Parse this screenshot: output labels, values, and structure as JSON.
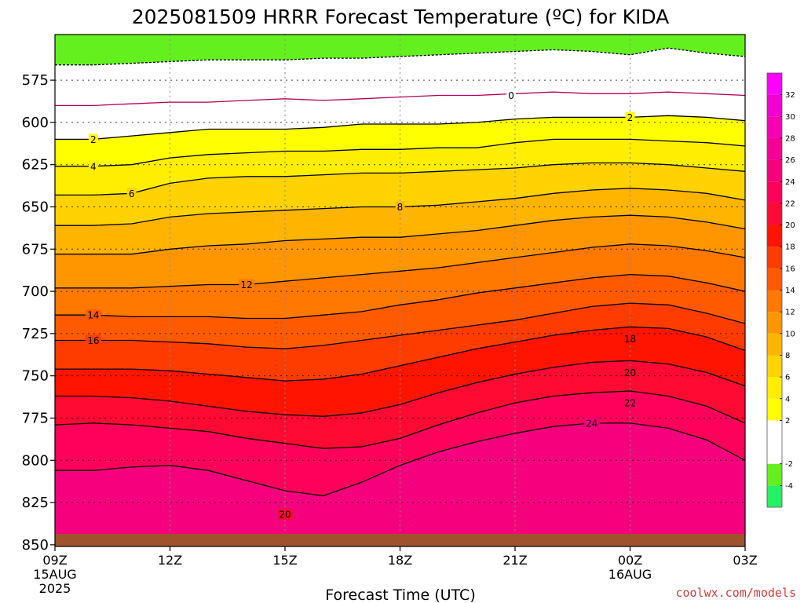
{
  "colors": {
    "ground": "#a0522d",
    "contour": "#000000",
    "zero_contour": "#b4005a",
    "credit": "#d23c3c"
  },
  "chart_data": {
    "type": "heatmap",
    "title": "2025081509 HRRR Forecast Temperature (ºC) for KIDA",
    "xlabel": "Forecast Time (UTC)",
    "ylabel": "",
    "x_ticks": [
      {
        "label": "09Z",
        "sub": [
          "15AUG",
          "2025"
        ]
      },
      {
        "label": "12Z",
        "sub": []
      },
      {
        "label": "15Z",
        "sub": []
      },
      {
        "label": "18Z",
        "sub": []
      },
      {
        "label": "21Z",
        "sub": []
      },
      {
        "label": "00Z",
        "sub": [
          "16AUG"
        ]
      },
      {
        "label": "03Z",
        "sub": []
      }
    ],
    "xlim_hours": [
      0,
      18
    ],
    "y_ticks": [
      "575",
      "600",
      "625",
      "650",
      "675",
      "700",
      "725",
      "750",
      "775",
      "800",
      "825",
      "850"
    ],
    "ylim_hpa": [
      548,
      851
    ],
    "y_scale": "linear (hPa, inverted)",
    "grid": true,
    "colorbar": {
      "placement": "right",
      "bins": [
        {
          "from": -6,
          "to": -4,
          "color": "#28f064"
        },
        {
          "from": -4,
          "to": -2,
          "color": "#64f01e"
        },
        {
          "from": -2,
          "to": 0,
          "color": "#ffffff"
        },
        {
          "from": 0,
          "to": 2,
          "color": "#ffffff"
        },
        {
          "from": 2,
          "to": 4,
          "color": "#ffff00"
        },
        {
          "from": 4,
          "to": 6,
          "color": "#ffee00"
        },
        {
          "from": 6,
          "to": 8,
          "color": "#ffd200"
        },
        {
          "from": 8,
          "to": 10,
          "color": "#ffb400"
        },
        {
          "from": 10,
          "to": 12,
          "color": "#ff9600"
        },
        {
          "from": 12,
          "to": 14,
          "color": "#ff7800"
        },
        {
          "from": 14,
          "to": 16,
          "color": "#ff5a00"
        },
        {
          "from": 16,
          "to": 18,
          "color": "#ff3c00"
        },
        {
          "from": 18,
          "to": 20,
          "color": "#ff1400"
        },
        {
          "from": 20,
          "to": 22,
          "color": "#ff0a32"
        },
        {
          "from": 22,
          "to": 24,
          "color": "#ff005a"
        },
        {
          "from": 24,
          "to": 26,
          "color": "#f5007d"
        },
        {
          "from": 26,
          "to": 28,
          "color": "#f50096"
        },
        {
          "from": 28,
          "to": 30,
          "color": "#f500b4"
        },
        {
          "from": 30,
          "to": 32,
          "color": "#f000d2"
        },
        {
          "from": 32,
          "to": 34,
          "color": "#ff00ff"
        }
      ],
      "tick_labels": [
        "-4",
        "-2",
        "2",
        "4",
        "6",
        "8",
        "10",
        "12",
        "14",
        "16",
        "18",
        "20",
        "22",
        "24",
        "26",
        "28",
        "30",
        "32"
      ]
    },
    "isotherm_hours": [
      0,
      1,
      2,
      3,
      4,
      5,
      6,
      7,
      8,
      9,
      10,
      11,
      12,
      13,
      14,
      15,
      16,
      17,
      18
    ],
    "isotherms_hpa": [
      {
        "temp": -2,
        "p": [
          566,
          566,
          565,
          564,
          563,
          563,
          563,
          562,
          562,
          561,
          560,
          559,
          558,
          557,
          558,
          560,
          556,
          559,
          561
        ]
      },
      {
        "temp": 0,
        "p": [
          590,
          590,
          589,
          588,
          588,
          587,
          586,
          587,
          586,
          585,
          584,
          584,
          583,
          582,
          583,
          583,
          582,
          583,
          584
        ]
      },
      {
        "temp": 2,
        "p": [
          610,
          610,
          608,
          606,
          604,
          604,
          604,
          603,
          601,
          601,
          601,
          600,
          598,
          597,
          597,
          597,
          596,
          597,
          599
        ]
      },
      {
        "temp": 4,
        "p": [
          626,
          626,
          625,
          621,
          619,
          618,
          617,
          617,
          616,
          616,
          615,
          615,
          612,
          610,
          610,
          610,
          611,
          612,
          614
        ]
      },
      {
        "temp": 6,
        "p": [
          643,
          643,
          642,
          636,
          633,
          632,
          632,
          631,
          630,
          630,
          629,
          628,
          627,
          625,
          624,
          624,
          625,
          627,
          629
        ]
      },
      {
        "temp": 8,
        "p": [
          661,
          661,
          660,
          656,
          654,
          653,
          652,
          651,
          650,
          650,
          649,
          647,
          645,
          642,
          640,
          639,
          640,
          642,
          646
        ]
      },
      {
        "temp": 10,
        "p": [
          678,
          678,
          678,
          675,
          673,
          672,
          670,
          669,
          668,
          668,
          666,
          664,
          661,
          658,
          656,
          655,
          656,
          659,
          663
        ]
      },
      {
        "temp": 12,
        "p": [
          698,
          698,
          698,
          697,
          696,
          696,
          694,
          692,
          690,
          688,
          686,
          683,
          680,
          677,
          674,
          672,
          673,
          676,
          680
        ]
      },
      {
        "temp": 14,
        "p": [
          714,
          714,
          715,
          715,
          715,
          716,
          716,
          714,
          712,
          708,
          705,
          701,
          698,
          695,
          692,
          690,
          691,
          695,
          700
        ]
      },
      {
        "temp": 16,
        "p": [
          729,
          729,
          729,
          730,
          731,
          733,
          734,
          732,
          729,
          726,
          723,
          720,
          717,
          713,
          709,
          707,
          708,
          713,
          719
        ]
      },
      {
        "temp": 18,
        "p": [
          746,
          746,
          746,
          747,
          749,
          751,
          753,
          752,
          749,
          744,
          739,
          734,
          730,
          726,
          723,
          721,
          722,
          727,
          735
        ]
      },
      {
        "temp": 20,
        "p": [
          762,
          762,
          763,
          765,
          768,
          771,
          773,
          774,
          772,
          767,
          760,
          754,
          749,
          745,
          742,
          741,
          743,
          748,
          756
        ]
      },
      {
        "temp": 22,
        "p": [
          779,
          778,
          779,
          781,
          783,
          787,
          790,
          793,
          792,
          787,
          779,
          772,
          766,
          762,
          760,
          759,
          762,
          768,
          778
        ]
      },
      {
        "temp": 24,
        "p": [
          806,
          806,
          804,
          803,
          806,
          812,
          818,
          821,
          813,
          803,
          795,
          789,
          784,
          780,
          778,
          778,
          781,
          788,
          800
        ]
      }
    ],
    "contour_labels": [
      {
        "text": "0",
        "hour": 11.9,
        "hpa": 584
      },
      {
        "text": "2",
        "hour": 1.0,
        "hpa": 610
      },
      {
        "text": "2",
        "hour": 15.0,
        "hpa": 597
      },
      {
        "text": "4",
        "hour": 1.0,
        "hpa": 626
      },
      {
        "text": "6",
        "hour": 2.0,
        "hpa": 642
      },
      {
        "text": "8",
        "hour": 9.0,
        "hpa": 650
      },
      {
        "text": "12",
        "hour": 5.0,
        "hpa": 696
      },
      {
        "text": "14",
        "hour": 1.0,
        "hpa": 714
      },
      {
        "text": "16",
        "hour": 1.0,
        "hpa": 729
      },
      {
        "text": "18",
        "hour": 15.0,
        "hpa": 728
      },
      {
        "text": "20",
        "hour": 15.0,
        "hpa": 748
      },
      {
        "text": "22",
        "hour": 15.0,
        "hpa": 766
      },
      {
        "text": "24",
        "hour": 14.0,
        "hpa": 778
      },
      {
        "text": "20",
        "hour": 6.0,
        "hpa": 832
      }
    ]
  },
  "credit": "coolwx.com/models"
}
